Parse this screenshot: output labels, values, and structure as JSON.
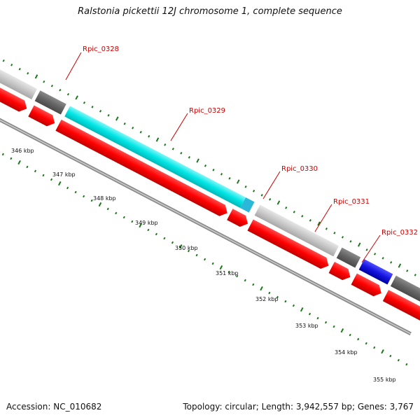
{
  "title": "Ralstonia pickettii 12J chromosome 1, complete sequence",
  "footer": {
    "accession": "Accession: NC_010682",
    "summary": "Topology: circular; Length: 3,942,557 bp; Genes: 3,767"
  },
  "colors": {
    "forward_cds": "#ff0000",
    "reverse_cds": "#ffffff",
    "gene_light": "#c8c8c8",
    "gene_dark": "#646464",
    "gene_cyan": "#00e5e5",
    "gene_blue": "#1414e0",
    "backbone": "#8c8c8c",
    "tick_green": "#1a7a1a",
    "label_red": "#cc0000"
  },
  "gene_labels": [
    "Rpic_0328",
    "Rpic_0329",
    "Rpic_0330",
    "Rpic_0331",
    "Rpic_0332"
  ],
  "kbp_labels": [
    "346 kbp",
    "347 kbp",
    "348 kbp",
    "349 kbp",
    "350 kbp",
    "351 kbp",
    "352 kbp",
    "353 kbp",
    "354 kbp",
    "355 kbp"
  ]
}
